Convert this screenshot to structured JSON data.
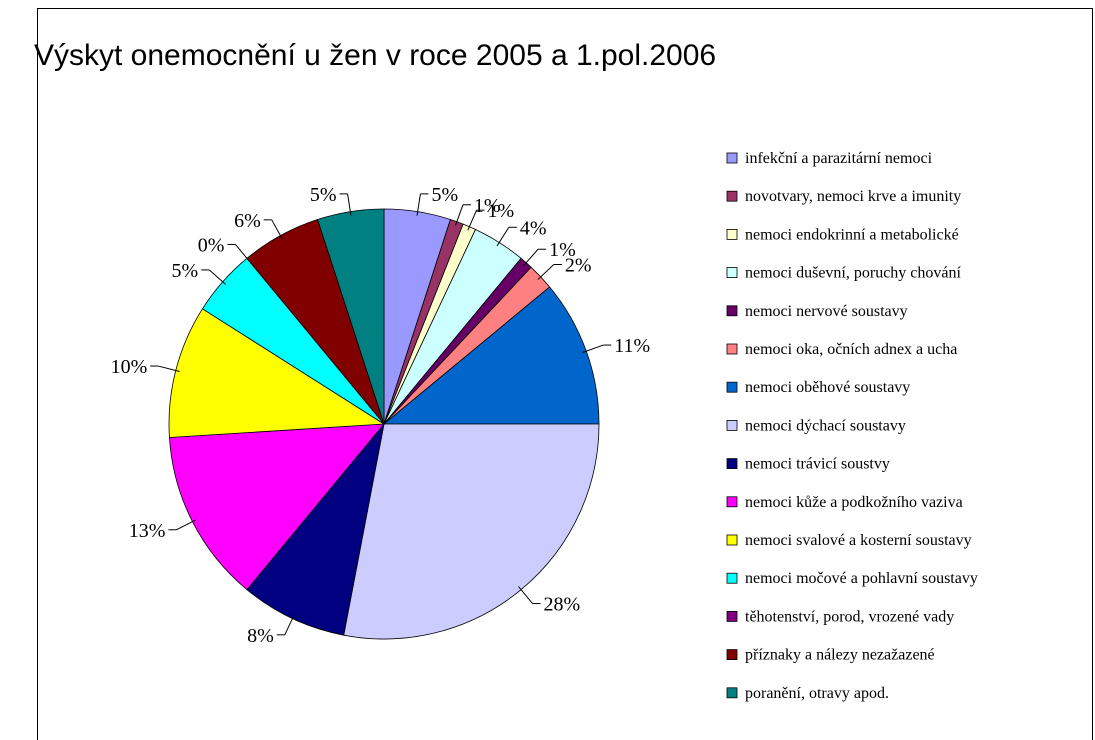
{
  "chart_data": {
    "type": "pie",
    "title": "Výskyt onemocnění u žen v roce 2005 a 1.pol.2006",
    "categories": [
      "infekční a parazitární nemoci",
      "novotvary, nemoci krve a imunity",
      "nemoci endokrinní a metabolické",
      "nemoci duševní, poruchy chování",
      "nemoci nervové soustavy",
      "nemoci oka, očních adnex a ucha",
      "nemoci oběhové soustavy",
      "nemoci dýchací soustavy",
      "nemoci trávicí soustvy",
      "nemoci kůže a podkožního vaziva",
      "nemoci svalové a kosterní soustavy",
      "nemoci močové a pohlavní soustavy",
      "těhotenství, porod, vrozené vady",
      "příznaky a nálezy nezažazené",
      "poranění, otravy apod."
    ],
    "values": [
      5,
      1,
      1,
      4,
      1,
      2,
      11,
      28,
      8,
      13,
      10,
      5,
      0,
      6,
      5
    ],
    "value_labels": [
      "5%",
      "1%",
      "1%",
      "4%",
      "1%",
      "2%",
      "11%",
      "28%",
      "8%",
      "13%",
      "10%",
      "5%",
      "0%",
      "6%",
      "5%"
    ],
    "colors": [
      "#9999ff",
      "#993366",
      "#ffffcc",
      "#ccffff",
      "#660066",
      "#ff8080",
      "#0066cc",
      "#ccccff",
      "#000080",
      "#ff00ff",
      "#ffff00",
      "#00ffff",
      "#800080",
      "#800000",
      "#008080"
    ],
    "legend": "right"
  }
}
